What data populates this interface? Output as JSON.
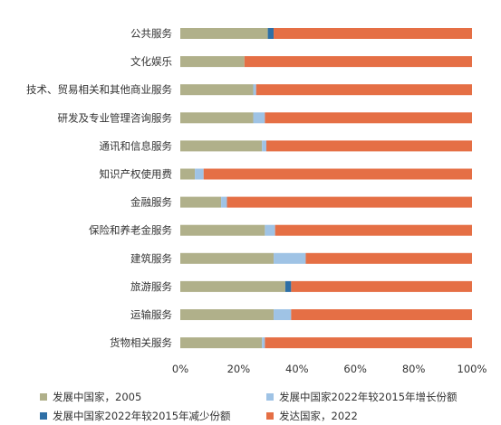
{
  "chart_data": {
    "type": "bar",
    "orientation": "horizontal",
    "stacked": "percent",
    "categories": [
      "公共服务",
      "文化娱乐",
      "技术、贸易相关和其他商业服务",
      "研发及专业管理咨询服务",
      "通讯和信息服务",
      "知识产权使用费",
      "金融服务",
      "保险和养老金服务",
      "建筑服务",
      "旅游服务",
      "运输服务",
      "货物相关服务"
    ],
    "series": [
      {
        "name": "发展中国家，2005",
        "color": "#b0b08a",
        "values": [
          30,
          22,
          25,
          25,
          28,
          5,
          14,
          29,
          32,
          36,
          32,
          28
        ]
      },
      {
        "name": "发展中国家2022年较2015年增长份额",
        "color": "#9fc3e5",
        "values": [
          0,
          0,
          1,
          4,
          1.5,
          3,
          2,
          3.5,
          11,
          0,
          6,
          1
        ]
      },
      {
        "name": "发展中国家2022年较2015年减少份额",
        "color": "#2e6fa6",
        "values": [
          2,
          0,
          0,
          0,
          0,
          0,
          0,
          0,
          0,
          2,
          0,
          0
        ]
      },
      {
        "name": "发达国家，2022",
        "color": "#e56f45",
        "values": [
          68,
          78,
          74,
          71,
          70.5,
          92,
          84,
          67.5,
          57,
          62,
          62,
          71
        ]
      }
    ],
    "xlim": [
      0,
      100
    ],
    "xticks": [
      "0%",
      "20%",
      "40%",
      "60%",
      "80%",
      "100%"
    ],
    "grid": false,
    "legend_position": "bottom"
  }
}
